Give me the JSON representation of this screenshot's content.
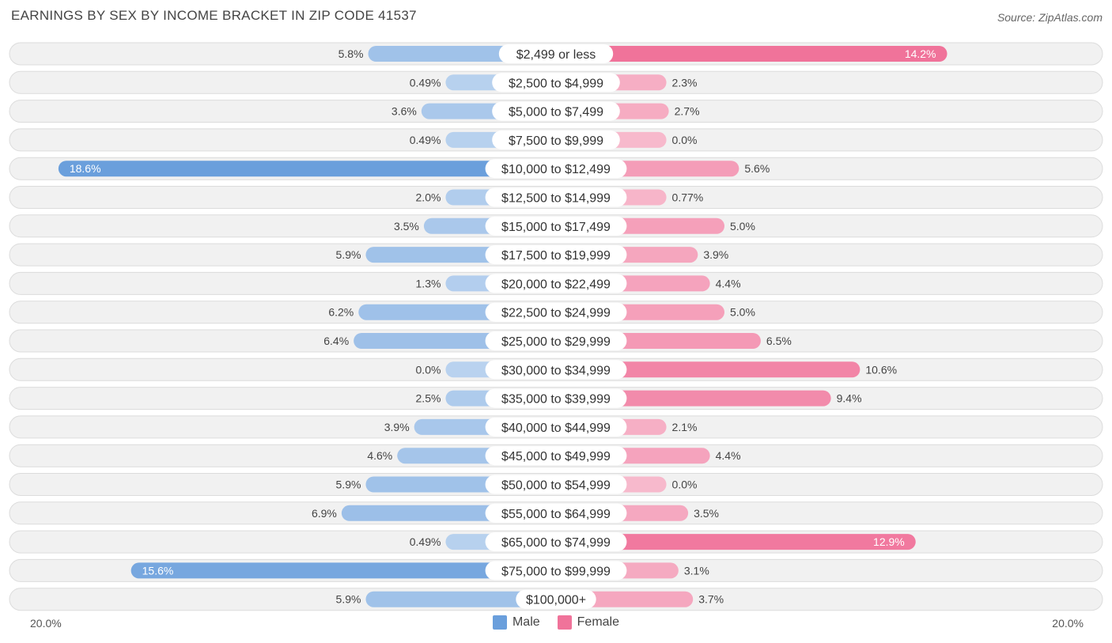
{
  "title": "EARNINGS BY SEX BY INCOME BRACKET IN ZIP CODE 41537",
  "source": "Source: ZipAtlas.com",
  "axis": {
    "left_label": "20.0%",
    "right_label": "20.0%"
  },
  "legend": [
    {
      "label": "Male",
      "color": "#6a9fdc"
    },
    {
      "label": "Female",
      "color": "#f0739a"
    }
  ],
  "chart_data": {
    "type": "bar",
    "orientation": "horizontal-diverging",
    "title": "EARNINGS BY SEX BY INCOME BRACKET IN ZIP CODE 41537",
    "xlim": [
      -20,
      20
    ],
    "categories": [
      "$2,499 or less",
      "$2,500 to $4,999",
      "$5,000 to $7,499",
      "$7,500 to $9,999",
      "$10,000 to $12,499",
      "$12,500 to $14,999",
      "$15,000 to $17,499",
      "$17,500 to $19,999",
      "$20,000 to $22,499",
      "$22,500 to $24,999",
      "$25,000 to $29,999",
      "$30,000 to $34,999",
      "$35,000 to $39,999",
      "$40,000 to $44,999",
      "$45,000 to $49,999",
      "$50,000 to $54,999",
      "$55,000 to $64,999",
      "$65,000 to $74,999",
      "$75,000 to $99,999",
      "$100,000+"
    ],
    "series": [
      {
        "name": "Male",
        "values": [
          5.8,
          0.49,
          3.6,
          0.49,
          18.6,
          2.0,
          3.5,
          5.9,
          1.3,
          6.2,
          6.4,
          0.0,
          2.5,
          3.9,
          4.6,
          5.9,
          6.9,
          0.49,
          15.6,
          5.9
        ],
        "labels": [
          "5.8%",
          "0.49%",
          "3.6%",
          "0.49%",
          "18.6%",
          "2.0%",
          "3.5%",
          "5.9%",
          "1.3%",
          "6.2%",
          "6.4%",
          "0.0%",
          "2.5%",
          "3.9%",
          "4.6%",
          "5.9%",
          "6.9%",
          "0.49%",
          "15.6%",
          "5.9%"
        ]
      },
      {
        "name": "Female",
        "values": [
          14.2,
          2.3,
          2.7,
          0.0,
          5.6,
          0.77,
          5.0,
          3.9,
          4.4,
          5.0,
          6.5,
          10.6,
          9.4,
          2.1,
          4.4,
          0.0,
          3.5,
          12.9,
          3.1,
          3.7
        ],
        "labels": [
          "14.2%",
          "2.3%",
          "2.7%",
          "0.0%",
          "5.6%",
          "0.77%",
          "5.0%",
          "3.9%",
          "4.4%",
          "5.0%",
          "6.5%",
          "10.6%",
          "9.4%",
          "2.1%",
          "4.4%",
          "0.0%",
          "3.5%",
          "12.9%",
          "3.1%",
          "3.7%"
        ]
      }
    ]
  }
}
